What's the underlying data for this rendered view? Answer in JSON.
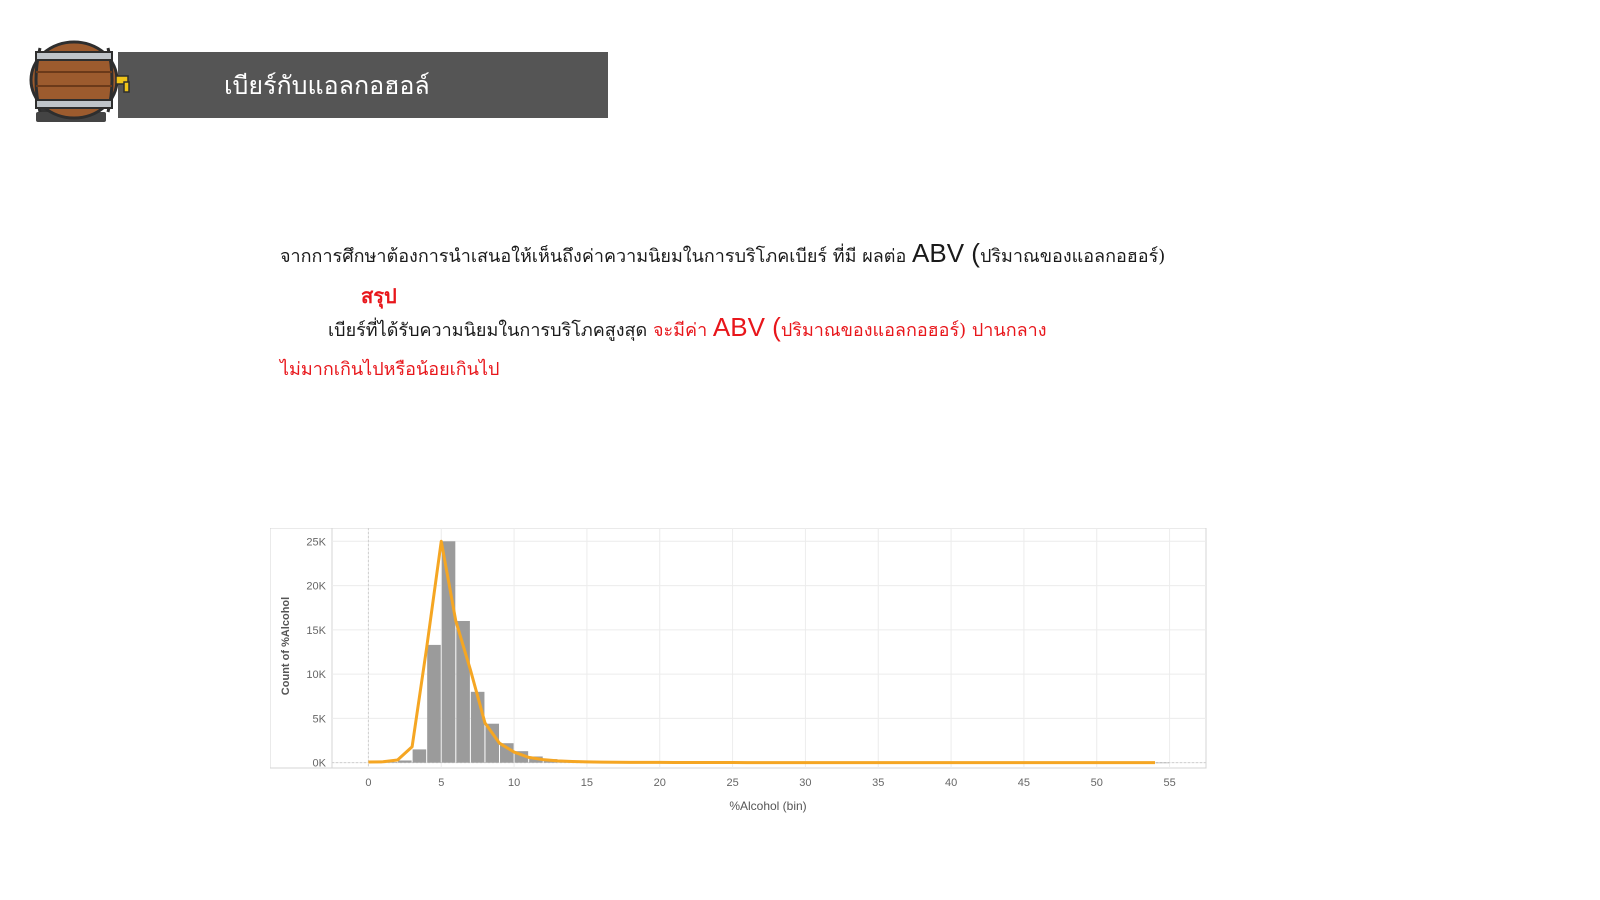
{
  "header": {
    "title": "เบียร์กับแอลกอฮอล์",
    "icon": "beer-barrel-icon"
  },
  "text": {
    "line1_before": "จากการศึกษาต้องการนำเสนอให้เห็นถึงค่าความนิยมในการบริโภคเบียร์ ที่มี ผลต่อ",
    "line1_abv": "ABV (",
    "line1_after": "ปริมาณของแอลกอฮอร์)",
    "summary_label": "สรุป",
    "line3_black": "เบียร์ที่ได้รับความนิยมในการบริโภคสูงสุด",
    "line3_red_before": "จะมีค่า",
    "line3_abv": "ABV (",
    "line3_red_after": "ปริมาณของแอลกอฮอร์) ปานกลาง",
    "line4": "ไม่มากเกินไปหรือน้อยเกินไป"
  },
  "colors": {
    "bar": "#9b9b9b",
    "line": "#f5a623",
    "header_bg": "#555555",
    "highlight": "#e8161b"
  },
  "chart_data": {
    "type": "bar",
    "xlabel": "%Alcohol (bin)",
    "ylabel": "Count of %Alcohol",
    "xlim": [
      -2.5,
      57.5
    ],
    "ylim": [
      -600,
      26500
    ],
    "x_ticks": [
      0,
      5,
      10,
      15,
      20,
      25,
      30,
      35,
      40,
      45,
      50,
      55
    ],
    "y_ticks": [
      0,
      5000,
      10000,
      15000,
      20000,
      25000
    ],
    "y_tick_labels": [
      "0K",
      "5K",
      "10K",
      "15K",
      "20K",
      "25K"
    ],
    "bins": [
      0,
      1,
      2,
      3,
      4,
      5,
      6,
      7,
      8,
      9,
      10,
      11,
      12,
      13,
      14,
      15,
      16,
      17,
      18,
      19,
      20,
      21,
      22,
      23,
      24,
      25,
      26,
      27,
      28,
      29,
      30,
      31,
      32,
      33,
      34,
      35,
      36,
      37,
      38,
      39,
      40,
      41,
      42,
      43,
      44,
      45,
      46,
      47,
      48,
      49,
      50,
      51,
      52,
      53,
      54
    ],
    "values": [
      60,
      70,
      250,
      1500,
      13300,
      25000,
      16000,
      8000,
      4400,
      2200,
      1300,
      700,
      400,
      250,
      150,
      100,
      80,
      60,
      50,
      40,
      35,
      30,
      25,
      20,
      18,
      15,
      12,
      12,
      10,
      10,
      8,
      8,
      6,
      6,
      5,
      5,
      5,
      4,
      4,
      4,
      3,
      3,
      3,
      3,
      3,
      3,
      2,
      2,
      2,
      2,
      2,
      2,
      2,
      2,
      2
    ],
    "line_values": [
      80,
      100,
      300,
      1800,
      13000,
      25000,
      16000,
      10500,
      4500,
      2200,
      1200,
      600,
      350,
      200,
      130,
      90,
      60,
      50,
      40,
      35,
      30,
      25,
      22,
      20,
      18,
      15,
      13,
      12,
      11,
      10,
      9,
      8,
      7,
      6,
      6,
      5,
      5,
      5,
      4,
      4,
      4,
      4,
      3,
      3,
      3,
      3,
      3,
      3,
      3,
      3,
      3,
      3,
      3,
      3,
      3
    ]
  }
}
